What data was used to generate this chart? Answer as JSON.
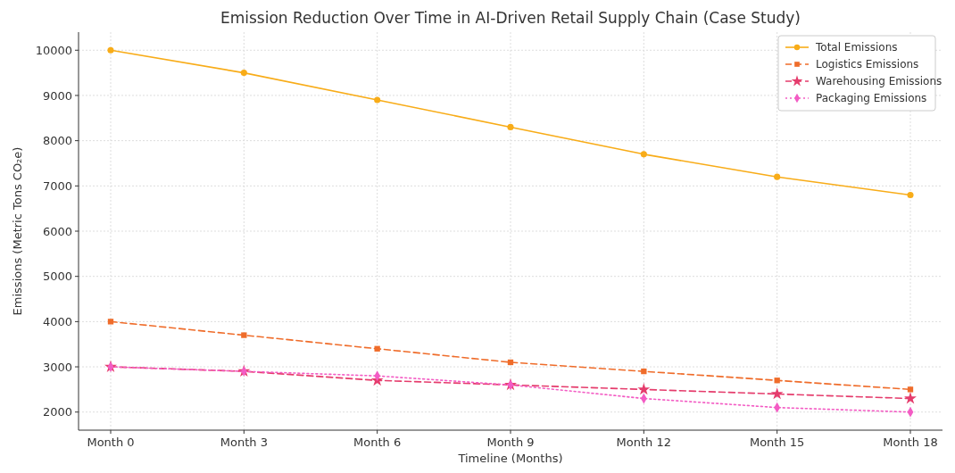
{
  "chart_data": {
    "type": "line",
    "title": "Emission Reduction Over Time in AI-Driven Retail Supply Chain (Case Study)",
    "xlabel": "Timeline (Months)",
    "ylabel": "Emissions (Metric Tons CO₂e)",
    "categories": [
      "Month 0",
      "Month 3",
      "Month 6",
      "Month 9",
      "Month 12",
      "Month 15",
      "Month 18"
    ],
    "series": [
      {
        "name": "Total Emissions",
        "color": "#f8ac18",
        "marker": "circle",
        "line_style": "solid",
        "values": [
          10000,
          9500,
          8900,
          8300,
          7700,
          7200,
          6800
        ]
      },
      {
        "name": "Logistics Emissions",
        "color": "#ef6c2a",
        "marker": "square",
        "line_style": "dashed",
        "values": [
          4000,
          3700,
          3400,
          3100,
          2900,
          2700,
          2500
        ]
      },
      {
        "name": "Warehousing Emissions",
        "color": "#e53c6c",
        "marker": "star",
        "line_style": "dashed",
        "values": [
          3000,
          2900,
          2700,
          2600,
          2500,
          2400,
          2300
        ]
      },
      {
        "name": "Packaging Emissions",
        "color": "#f35cc4",
        "marker": "diamond",
        "line_style": "dotted",
        "values": [
          3000,
          2900,
          2800,
          2600,
          2300,
          2100,
          2000
        ]
      }
    ],
    "ylim": [
      1600,
      10400
    ],
    "yticks": [
      2000,
      3000,
      4000,
      5000,
      6000,
      7000,
      8000,
      9000,
      10000
    ],
    "grid": true,
    "legend": "top right"
  }
}
